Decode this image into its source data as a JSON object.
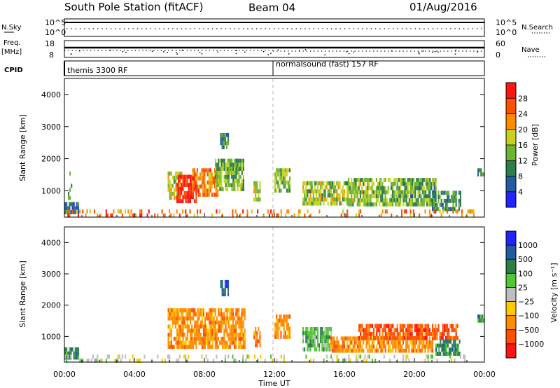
{
  "header": {
    "station": "South Pole Station (fitACF)",
    "beam": "Beam 04",
    "date": "01/Aug/2016"
  },
  "side_labels": {
    "nsky": "N.Sky",
    "freq_line1": "Freq.",
    "freq_line2": "[MHz]",
    "cpid": "CPID",
    "nsearch": "N.Search",
    "nave": "Nave"
  },
  "top_panels": {
    "n_panel": {
      "left_ticks": [
        "10^5",
        "10^0"
      ],
      "right_ticks": [
        "10^5",
        "10^0"
      ]
    },
    "freq_panel": {
      "left_ticks": [
        "18",
        "8"
      ],
      "right_ticks": [
        "60",
        "0"
      ]
    },
    "cpid_labels": [
      "themis 3300 RF",
      "normalsound (fast) 157 RF"
    ]
  },
  "colors": {
    "power_scale": [
      "#2323ff",
      "#235aa0",
      "#2d7d4b",
      "#6eb432",
      "#c8d21e",
      "#ff8c00",
      "#ff5000",
      "#ff1414"
    ],
    "velocity_scale": [
      "#2323ff",
      "#235aa0",
      "#2d7d4b",
      "#50c832",
      "#bebebe",
      "#ffc800",
      "#ff8c00",
      "#ff5000",
      "#ff1414"
    ]
  },
  "chart_data": [
    {
      "type": "heatmap",
      "name": "power",
      "ylabel": "Slant Range [km]",
      "ylim": [
        180,
        4500
      ],
      "xlim": [
        0,
        24
      ],
      "yticks": [
        1000,
        2000,
        3000,
        4000
      ],
      "colorbar": {
        "label": "Power [dB]",
        "ticks": [
          "4",
          "8",
          "12",
          "16",
          "20",
          "24",
          "28"
        ],
        "range": [
          0,
          30
        ]
      },
      "blobs": [
        {
          "t0": 0.0,
          "t1": 0.8,
          "r0": 300,
          "r1": 650,
          "value": 8
        },
        {
          "t0": 0.2,
          "t1": 0.6,
          "r0": 300,
          "r1": 1600,
          "value": 10,
          "density": 0.1
        },
        {
          "t0": 5.9,
          "t1": 6.7,
          "r0": 800,
          "r1": 1600,
          "value": 16
        },
        {
          "t0": 6.4,
          "t1": 7.5,
          "r0": 700,
          "r1": 1500,
          "value": 28
        },
        {
          "t0": 7.3,
          "t1": 8.8,
          "r0": 900,
          "r1": 1700,
          "value": 22
        },
        {
          "t0": 8.6,
          "t1": 10.2,
          "r0": 1100,
          "r1": 2000,
          "value": 13
        },
        {
          "t0": 8.9,
          "t1": 9.4,
          "r0": 2400,
          "r1": 2800,
          "value": 10
        },
        {
          "t0": 10.8,
          "t1": 11.2,
          "r0": 700,
          "r1": 1300,
          "value": 16
        },
        {
          "t0": 12.0,
          "t1": 12.9,
          "r0": 1000,
          "r1": 1700,
          "value": 14
        },
        {
          "t0": 13.6,
          "t1": 16.2,
          "r0": 550,
          "r1": 1300,
          "value": 15
        },
        {
          "t0": 16.2,
          "t1": 19.0,
          "r0": 550,
          "r1": 1400,
          "value": 14
        },
        {
          "t0": 19.0,
          "t1": 21.2,
          "r0": 550,
          "r1": 1400,
          "value": 12
        },
        {
          "t0": 21.0,
          "t1": 22.6,
          "r0": 450,
          "r1": 1000,
          "value": 10
        },
        {
          "t0": 23.6,
          "t1": 24.0,
          "r0": 1500,
          "r1": 1700,
          "value": 10
        },
        {
          "t0": 0.0,
          "t1": 23.6,
          "r0": 200,
          "r1": 420,
          "value": 22,
          "density": 0.22
        }
      ]
    },
    {
      "type": "heatmap",
      "name": "velocity",
      "ylabel": "Slant Range [km]",
      "xlabel": "Time UT",
      "ylim": [
        180,
        4500
      ],
      "xlim": [
        0,
        24
      ],
      "xticks": [
        "00:00",
        "04:00",
        "08:00",
        "12:00",
        "16:00",
        "20:00",
        "00:00"
      ],
      "yticks": [
        1000,
        2000,
        3000,
        4000
      ],
      "colorbar": {
        "label": "Velocity [m s⁻¹]",
        "ticks": [
          "1000",
          "500",
          "100",
          "25",
          "−25",
          "−100",
          "−500",
          "−1000"
        ]
      },
      "blobs": [
        {
          "t0": 0.0,
          "t1": 0.8,
          "r0": 300,
          "r1": 650,
          "value": 2
        },
        {
          "t0": 5.9,
          "t1": 10.3,
          "r0": 700,
          "r1": 1900,
          "value": 6
        },
        {
          "t0": 8.9,
          "t1": 9.4,
          "r0": 2400,
          "r1": 2800,
          "value": 1
        },
        {
          "t0": 10.8,
          "t1": 11.2,
          "r0": 700,
          "r1": 1300,
          "value": 6
        },
        {
          "t0": 12.0,
          "t1": 12.9,
          "r0": 1000,
          "r1": 1700,
          "value": 6
        },
        {
          "t0": 13.6,
          "t1": 15.2,
          "r0": 550,
          "r1": 1300,
          "value": 3
        },
        {
          "t0": 15.2,
          "t1": 21.0,
          "r0": 550,
          "r1": 1000,
          "value": 6
        },
        {
          "t0": 16.8,
          "t1": 22.5,
          "r0": 1000,
          "r1": 1400,
          "value": 7
        },
        {
          "t0": 21.2,
          "t1": 22.6,
          "r0": 450,
          "r1": 900,
          "value": 2
        },
        {
          "t0": 23.6,
          "t1": 24.0,
          "r0": 1500,
          "r1": 1700,
          "value": 2
        },
        {
          "t0": 0.0,
          "t1": 23.6,
          "r0": 200,
          "r1": 420,
          "value": 4,
          "density": 0.22
        }
      ]
    }
  ]
}
